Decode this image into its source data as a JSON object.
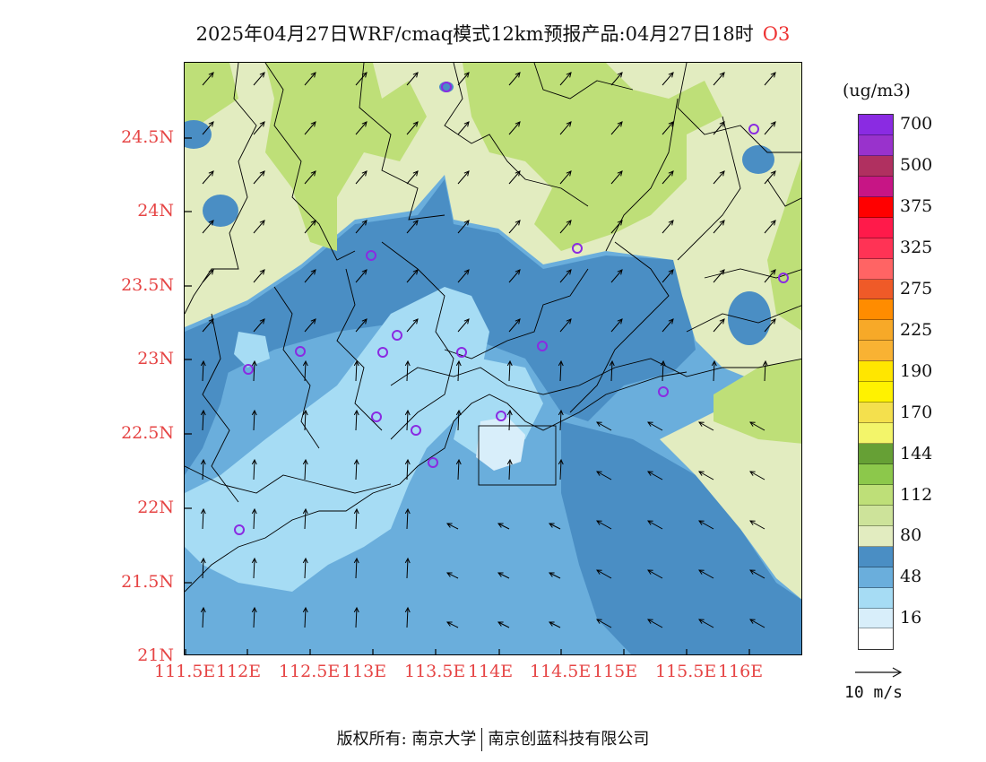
{
  "title": {
    "main": "2025年04月27日WRF/cmaq模式12km预报产品:04月27日18时",
    "species": "O3"
  },
  "axes": {
    "y_labels": [
      "24.5N",
      "24N",
      "23.5N",
      "23N",
      "22.5N",
      "22N",
      "21.5N",
      "21N"
    ],
    "x_labels": [
      "111.5E",
      "112E",
      "112.5E",
      "113E",
      "113.5E",
      "114E",
      "114.5E",
      "115E",
      "115.5E",
      "116E"
    ]
  },
  "colorbar": {
    "unit": "(ug/m3)",
    "levels": [
      {
        "color": "#8a2be2",
        "label": "700"
      },
      {
        "color": "#9932cc",
        "label": ""
      },
      {
        "color": "#b03060",
        "label": "500"
      },
      {
        "color": "#c71585",
        "label": ""
      },
      {
        "color": "#ff0000",
        "label": "375"
      },
      {
        "color": "#ff1a4a",
        "label": ""
      },
      {
        "color": "#ff3355",
        "label": "325"
      },
      {
        "color": "#ff6464",
        "label": ""
      },
      {
        "color": "#ef5a28",
        "label": "275"
      },
      {
        "color": "#ff8c00",
        "label": ""
      },
      {
        "color": "#f7a928",
        "label": "225"
      },
      {
        "color": "#f9b233",
        "label": ""
      },
      {
        "color": "#ffe600",
        "label": "190"
      },
      {
        "color": "#fff200",
        "label": ""
      },
      {
        "color": "#f4e04d",
        "label": "170"
      },
      {
        "color": "#f3f56a",
        "label": ""
      },
      {
        "color": "#66a035",
        "label": "144"
      },
      {
        "color": "#8cc84b",
        "label": ""
      },
      {
        "color": "#bedf78",
        "label": "112"
      },
      {
        "color": "#cde39a",
        "label": ""
      },
      {
        "color": "#e2ecc0",
        "label": "80"
      },
      {
        "color": "#4a8ec4",
        "label": ""
      },
      {
        "color": "#6aaedc",
        "label": "48"
      },
      {
        "color": "#a6dcf4",
        "label": ""
      },
      {
        "color": "#d8eefa",
        "label": "16"
      },
      {
        "color": "#ffffff",
        "label": ""
      }
    ]
  },
  "reference_vector": {
    "label": "10 m/s"
  },
  "footer": {
    "left": "版权所有: 南京大学",
    "right": "南京创蓝科技有限公司"
  },
  "colors": {
    "tick_label": "#e64545",
    "marker": "#8a2be2",
    "boundary": "#000000"
  }
}
